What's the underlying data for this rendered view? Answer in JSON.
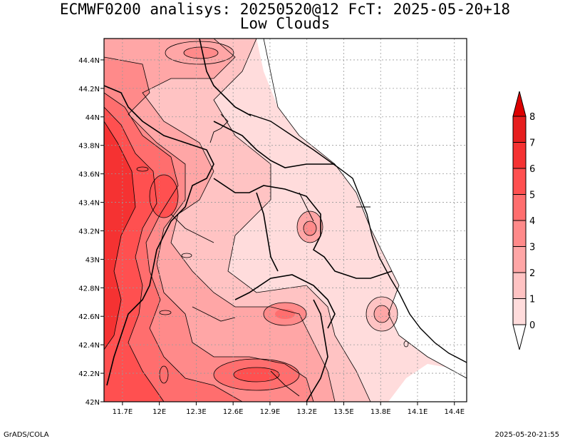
{
  "title": {
    "line1": "ECMWF0200 analisys: 20250520@12 FcT: 2025-05-20+18",
    "line2": "Low Clouds"
  },
  "footer": {
    "left": "GrADS/COLA",
    "right": "2025-05-20-21:55"
  },
  "map": {
    "lon_range": [
      11.55,
      14.5
    ],
    "lat_range": [
      42.0,
      44.55
    ],
    "lon_ticks": [
      "11.7E",
      "12E",
      "12.3E",
      "12.6E",
      "12.9E",
      "13.2E",
      "13.5E",
      "13.8E",
      "14.1E",
      "14.4E"
    ],
    "lat_ticks": [
      "42N",
      "42.2N",
      "42.4N",
      "42.6N",
      "42.8N",
      "43N",
      "43.2N",
      "43.4N",
      "43.6N",
      "43.8N",
      "44N",
      "44.2N",
      "44.4N"
    ],
    "grid": true,
    "field": "Low Clouds"
  },
  "colorbar": {
    "labels": [
      "0",
      "1",
      "2",
      "3",
      "4",
      "5",
      "6",
      "7",
      "8"
    ],
    "colors": [
      "#ffffff",
      "#ffdcdc",
      "#ffc3c3",
      "#ffa6a6",
      "#ff8a8a",
      "#ff6e6e",
      "#ff5050",
      "#f53232",
      "#e61e1e"
    ]
  }
}
